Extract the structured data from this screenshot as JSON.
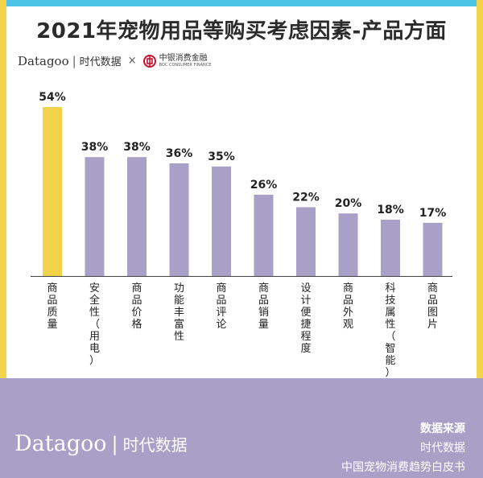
{
  "header": {
    "title": "2021年宠物用品等购买考虑因素-产品方面",
    "brand_en": "Datagoo",
    "brand_cn": "时代数据",
    "brand_separator": "×",
    "partner_cn": "中银消费金融",
    "partner_en": "BOC CONSUMER FINANCE"
  },
  "footer": {
    "brand_en": "Datagoo",
    "brand_cn": "时代数据",
    "source_title": "数据来源",
    "source_line1": "时代数据",
    "source_line2": "中国宠物消费趋势白皮书"
  },
  "colors": {
    "highlight_bar": "#f2d24a",
    "bar": "#a9a0c8",
    "footer_band": "#a9a0c8",
    "top_frame": "#4cc4e8",
    "side_frame": "#f2d24a"
  },
  "chart_data": {
    "type": "bar",
    "title": "2021年宠物用品等购买考虑因素-产品方面",
    "categories": [
      "商品质量",
      "安全性（用电）",
      "商品价格",
      "功能丰富性",
      "商品评论",
      "商品销量",
      "设计便捷程度",
      "商品外观",
      "科技属性（智能）",
      "商品图片"
    ],
    "values": [
      54,
      38,
      38,
      36,
      35,
      26,
      22,
      20,
      18,
      17
    ],
    "value_labels": [
      "54%",
      "38%",
      "38%",
      "36%",
      "35%",
      "26%",
      "22%",
      "20%",
      "18%",
      "17%"
    ],
    "unit": "%",
    "ylim": [
      0,
      54
    ],
    "grid": false,
    "legend": "none",
    "highlight_index": 0
  }
}
